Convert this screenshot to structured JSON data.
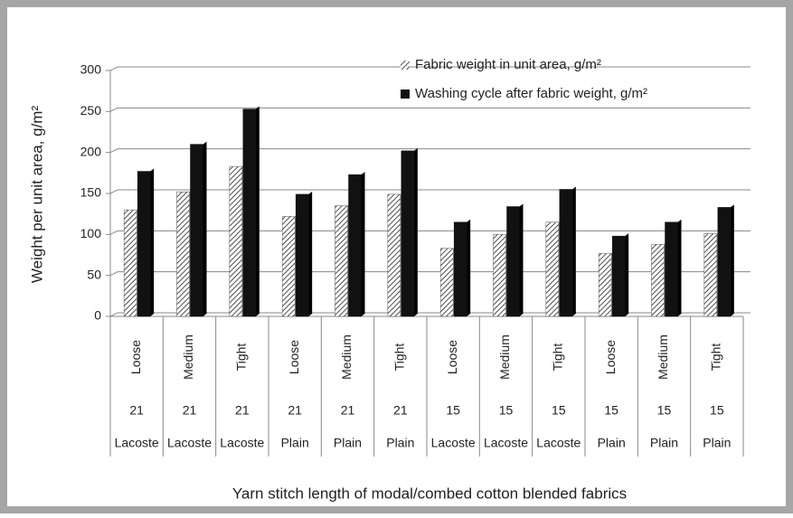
{
  "chart_data": {
    "type": "bar",
    "x_label": "Yarn stitch length of modal/combed cotton blended fabrics",
    "y_label": "Weight per unit area, g/m²",
    "categories": [
      "Loose",
      "Medium",
      "Tight",
      "Loose",
      "Medium",
      "Tight",
      "Loose",
      "Medium",
      "Tight",
      "Loose",
      "Medium",
      "Tight"
    ],
    "category_levels": [
      [
        "21",
        "21",
        "21",
        "21",
        "21",
        "21",
        "15",
        "15",
        "15",
        "15",
        "15",
        "15"
      ],
      [
        "Lacoste",
        "Lacoste",
        "Lacoste",
        "Plain",
        "Plain",
        "Plain",
        "Lacoste",
        "Lacoste",
        "Lacoste",
        "Plain",
        "Plain",
        "Plain"
      ]
    ],
    "series": [
      {
        "name": "Fabric weight in unit area, g/m²",
        "color": "#222222",
        "hatch": true,
        "values": [
          130,
          152,
          183,
          122,
          135,
          149,
          83,
          100,
          115,
          77,
          88,
          101
        ]
      },
      {
        "name": "Washing cycle after fabric weight, g/m²",
        "color": "#111111",
        "hatch": false,
        "values": [
          177,
          210,
          253,
          149,
          173,
          202,
          115,
          134,
          155,
          98,
          115,
          133
        ]
      }
    ],
    "ylim": [
      0,
      300
    ],
    "yticks": [
      0,
      50,
      100,
      150,
      200,
      250,
      300
    ],
    "grid": true
  }
}
